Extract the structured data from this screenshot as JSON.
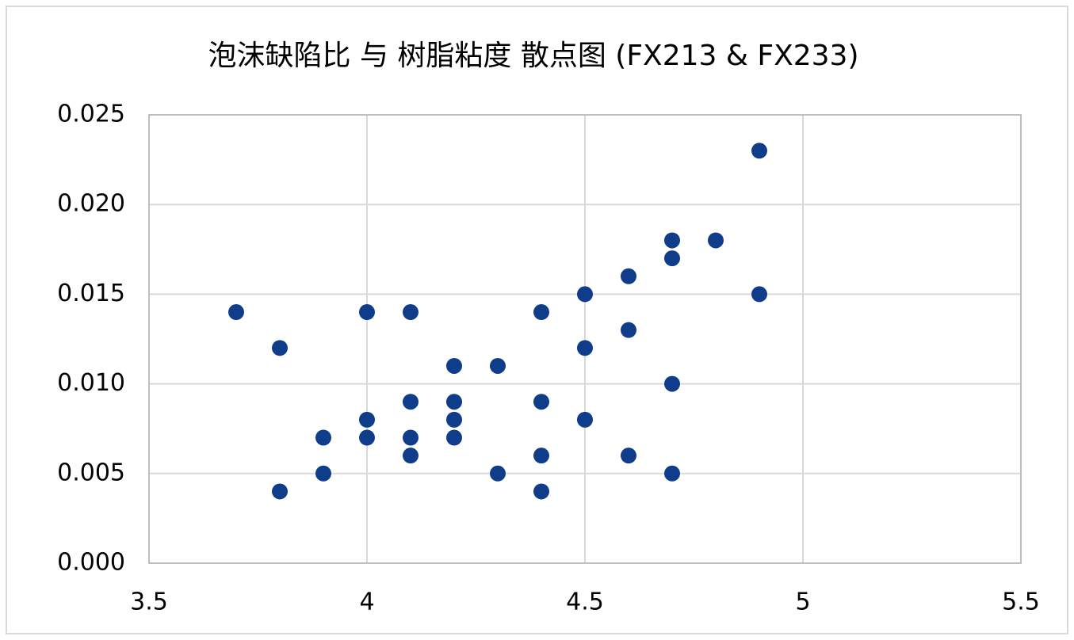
{
  "chart_data": {
    "type": "scatter",
    "title": "泡沫缺陷比 与 树脂粘度 散点图 (FX213 & FX233)",
    "x": [
      3.7,
      3.8,
      3.8,
      3.9,
      3.9,
      4.0,
      4.0,
      4.0,
      4.1,
      4.1,
      4.1,
      4.1,
      4.2,
      4.2,
      4.2,
      4.2,
      4.3,
      4.3,
      4.4,
      4.4,
      4.4,
      4.4,
      4.5,
      4.5,
      4.5,
      4.6,
      4.6,
      4.6,
      4.7,
      4.7,
      4.7,
      4.7,
      4.8,
      4.9,
      4.9
    ],
    "values": [
      0.014,
      0.012,
      0.004,
      0.007,
      0.005,
      0.014,
      0.008,
      0.007,
      0.014,
      0.009,
      0.007,
      0.006,
      0.011,
      0.009,
      0.008,
      0.007,
      0.011,
      0.005,
      0.014,
      0.009,
      0.006,
      0.004,
      0.015,
      0.012,
      0.008,
      0.016,
      0.013,
      0.006,
      0.018,
      0.017,
      0.01,
      0.005,
      0.018,
      0.023,
      0.015
    ],
    "color": "#0f3d8a",
    "xlim": [
      3.5,
      5.5
    ],
    "xticks": [
      3.5,
      4,
      4.5,
      5,
      5.5
    ],
    "ylim": [
      0,
      0.025
    ],
    "yticks": [
      {
        "value": 0,
        "label": "0.000"
      },
      {
        "value": 0.005,
        "label": "0.005"
      },
      {
        "value": 0.01,
        "label": "0.010"
      },
      {
        "value": 0.015,
        "label": "0.015"
      },
      {
        "value": 0.02,
        "label": "0.020"
      },
      {
        "value": 0.025,
        "label": "0.025"
      }
    ],
    "grid": true
  }
}
